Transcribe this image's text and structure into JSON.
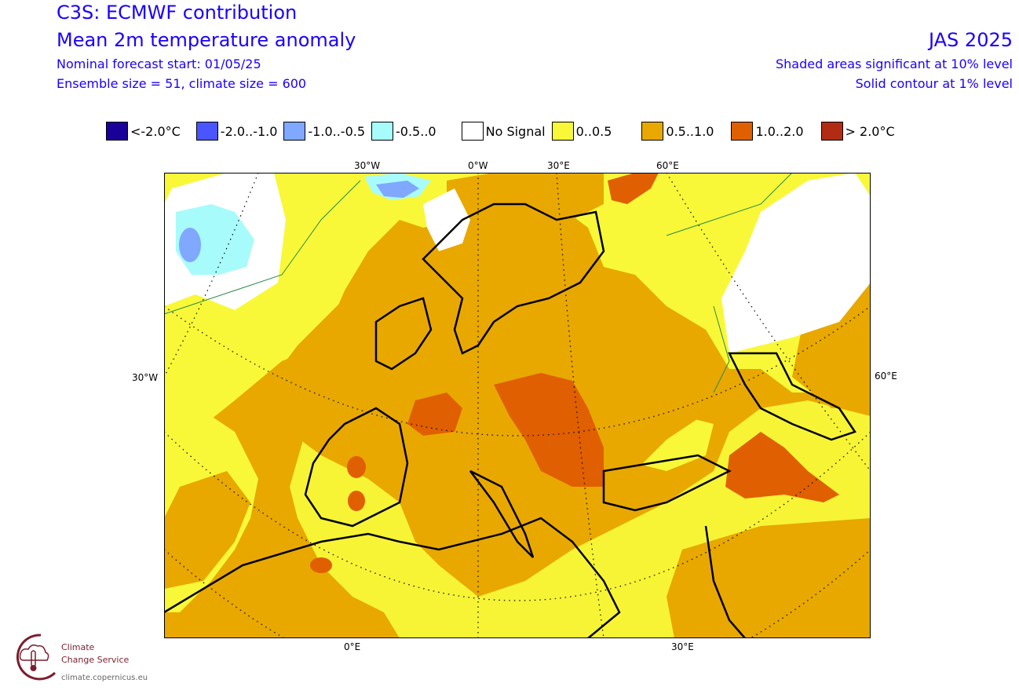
{
  "header": {
    "title": "C3S: ECMWF contribution",
    "subtitle": "Mean 2m temperature anomaly",
    "forecast_start": "Nominal forecast start: 01/05/25",
    "ensemble": "Ensemble size = 51, climate size = 600",
    "period": "JAS 2025",
    "shaded_note": "Shaded areas significant at 10% level",
    "contour_note": "Solid contour at 1% level"
  },
  "legend": [
    {
      "label": "<-2.0°C",
      "color": "#1a0099"
    },
    {
      "label": "-2.0..-1.0",
      "color": "#4a55ff"
    },
    {
      "label": "-1.0..-0.5",
      "color": "#80a8ff"
    },
    {
      "label": "-0.5..0",
      "color": "#a8fbfb"
    },
    {
      "label": "No Signal",
      "color": "#ffffff"
    },
    {
      "label": "0..0.5",
      "color": "#f8f838"
    },
    {
      "label": "0.5..1.0",
      "color": "#e8a800"
    },
    {
      "label": "1.0..2.0",
      "color": "#e05f00"
    },
    {
      "label": "> 2.0°C",
      "color": "#b22c14"
    }
  ],
  "axes": {
    "top": [
      "30°W",
      "0°W",
      "30°E",
      "60°E"
    ],
    "left": "30°W",
    "right": "60°E",
    "bottom": [
      "0°E",
      "30°E"
    ]
  },
  "logo": {
    "line1": "Climate",
    "line2": "Change Service",
    "url": "climate.copernicus.eu"
  }
}
